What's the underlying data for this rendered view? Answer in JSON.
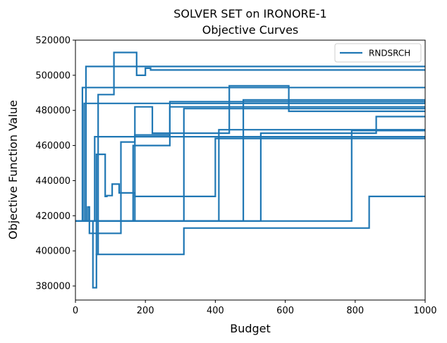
{
  "chart_data": {
    "type": "line",
    "title": "SOLVER SET on IRONORE-1",
    "subtitle": "Objective Curves",
    "xlabel": "Budget",
    "ylabel": "Objective Function Value",
    "xlim": [
      0,
      1000
    ],
    "ylim": [
      372000,
      520000
    ],
    "xticks": [
      0,
      200,
      400,
      600,
      800,
      1000
    ],
    "yticks": [
      380000,
      400000,
      420000,
      440000,
      460000,
      480000,
      500000,
      520000
    ],
    "legend_position": "top-right",
    "grid": false,
    "line_color": "#1f77b4",
    "series": [
      {
        "name": "RNDSRCH",
        "runs": [
          {
            "x": [
              0,
              20,
              20,
              1000
            ],
            "y": [
              417000,
              417000,
              493000,
              493000
            ]
          },
          {
            "x": [
              0,
              30,
              30,
              1000
            ],
            "y": [
              417000,
              417000,
              505000,
              505000
            ]
          },
          {
            "x": [
              0,
              25,
              25,
              1000,
              1000
            ],
            "y": [
              417000,
              417000,
              484000,
              484000,
              485500
            ]
          },
          {
            "x": [
              0,
              35,
              35,
              40,
              40,
              130,
              130,
              170,
              170,
              270,
              270,
              1000
            ],
            "y": [
              417000,
              417000,
              425000,
              425000,
              410000,
              410000,
              462000,
              462000,
              466000,
              466000,
              485000,
              485000
            ]
          },
          {
            "x": [
              0,
              50,
              50,
              60,
              60,
              65,
              65,
              110,
              110,
              175,
              175,
              200,
              200,
              215,
              215,
              1000
            ],
            "y": [
              417000,
              417000,
              379000,
              379000,
              398000,
              398000,
              489000,
              489000,
              513000,
              513000,
              500000,
              500000,
              504000,
              504000,
              503000,
              503000
            ]
          },
          {
            "x": [
              0,
              55,
              55,
              1000
            ],
            "y": [
              417000,
              417000,
              465000,
              465000
            ]
          },
          {
            "x": [
              0,
              60,
              60,
              85,
              85,
              90,
              90,
              105,
              105,
              125,
              125,
              170,
              170,
              400,
              400,
              1000
            ],
            "y": [
              417000,
              417000,
              455000,
              455000,
              431000,
              431000,
              431500,
              431500,
              438000,
              438000,
              433000,
              433000,
              431000,
              431000,
              464000,
              464000
            ]
          },
          {
            "x": [
              0,
              170,
              170,
              220,
              220,
              440,
              440,
              610,
              610,
              1000
            ],
            "y": [
              417000,
              417000,
              482000,
              482000,
              467000,
              467000,
              494000,
              494000,
              479500,
              479500
            ]
          },
          {
            "x": [
              0,
              165,
              165,
              270,
              270,
              1000
            ],
            "y": [
              417000,
              417000,
              460000,
              460000,
              482000,
              482000
            ]
          },
          {
            "x": [
              0,
              60,
              60,
              310,
              310,
              840,
              840,
              1000
            ],
            "y": [
              417000,
              417000,
              398000,
              398000,
              413000,
              413000,
              431000,
              431000
            ]
          },
          {
            "x": [
              0,
              310,
              310,
              1000
            ],
            "y": [
              417000,
              417000,
              481000,
              481000
            ]
          },
          {
            "x": [
              0,
              480,
              480,
              1000
            ],
            "y": [
              417000,
              417000,
              486000,
              486000
            ]
          },
          {
            "x": [
              0,
              410,
              410,
              1000
            ],
            "y": [
              417000,
              417000,
              469000,
              469000
            ]
          },
          {
            "x": [
              0,
              530,
              530,
              860,
              860,
              1000
            ],
            "y": [
              417000,
              417000,
              467000,
              467000,
              476500,
              476500
            ]
          },
          {
            "x": [
              0,
              790,
              790,
              1000
            ],
            "y": [
              417000,
              417000,
              468500,
              468500
            ]
          }
        ]
      }
    ]
  }
}
